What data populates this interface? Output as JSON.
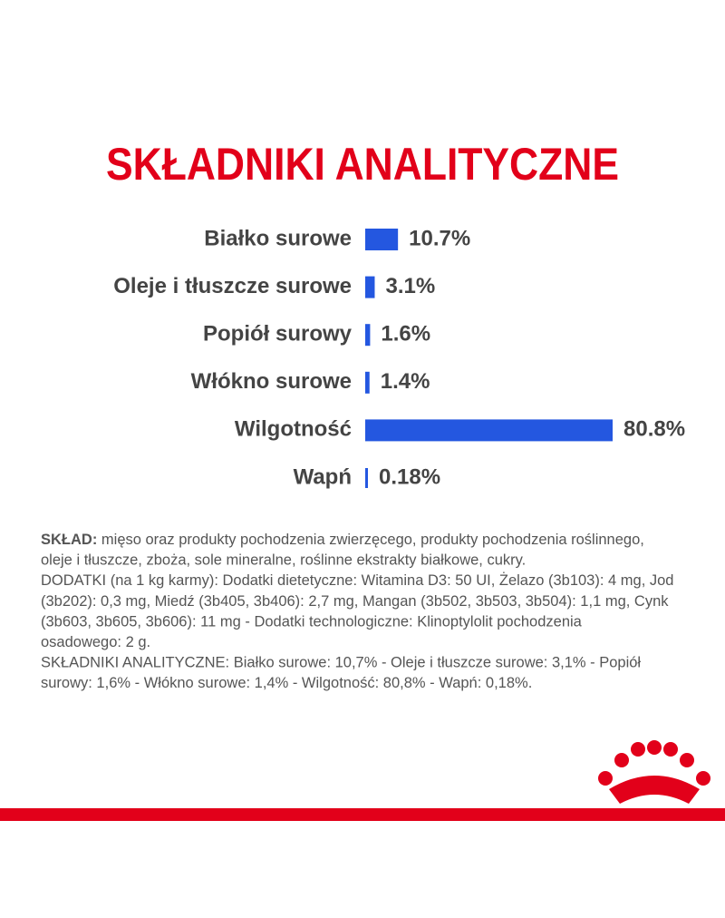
{
  "chart_data": {
    "type": "bar",
    "orientation": "horizontal",
    "title": "SKŁADNIKI ANALITYCZNE",
    "categories": [
      "Białko surowe",
      "Oleje i tłuszcze surowe",
      "Popiół surowy",
      "Włókno surowe",
      "Wilgotność",
      "Wapń"
    ],
    "values": [
      10.7,
      3.1,
      1.6,
      1.4,
      80.8,
      0.18
    ],
    "value_labels": [
      "10.7%",
      "3.1%",
      "1.6%",
      "1.4%",
      "80.8%",
      "0.18%"
    ],
    "color": "#2457e0",
    "title_color": "#e2001a"
  },
  "composition": {
    "label": "SKŁAD:",
    "lines": [
      " mięso oraz produkty pochodzenia zwierzęcego, produkty pochodzenia roślinnego,",
      "oleje i tłuszcze, zboża, sole mineralne, roślinne ekstrakty białkowe, cukry.",
      "DODATKI (na 1 kg karmy): Dodatki dietetyczne: Witamina D3: 50 UI, Żelazo (3b103): 4 mg, Jod",
      "(3b202): 0,3 mg, Miedź (3b405, 3b406): 2,7 mg, Mangan (3b502, 3b503, 3b504): 1,1 mg, Cynk",
      "(3b603, 3b605, 3b606): 11 mg - Dodatki technologiczne: Klinoptylolit pochodzenia",
      "osadowego: 2 g.",
      "SKŁADNIKI ANALITYCZNE: Białko surowe: 10,7% - Oleje i tłuszcze surowe: 3,1% - Popiół",
      "surowy: 1,6% - Włókno surowe: 1,4% - Wilgotność: 80,8% - Wapń: 0,18%."
    ]
  }
}
